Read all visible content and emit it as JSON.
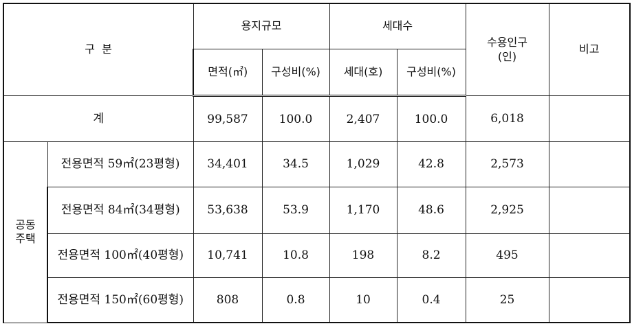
{
  "header": {
    "category": "구  분",
    "land_scale": "용지규모",
    "households": "세대수",
    "population": "수용인구\n(인)",
    "remarks": "비고",
    "area": "면적(㎡)",
    "area_ratio": "구성비(%)",
    "hh_count": "세대(호)",
    "hh_ratio": "구성비(%)"
  },
  "total": {
    "label": "계",
    "area": "99,587",
    "area_ratio": "100.0",
    "hh": "2,407",
    "hh_ratio": "100.0",
    "pop": "6,018",
    "remark": ""
  },
  "group_label": "공동\n주택",
  "rows": [
    {
      "label": "전용면적  59㎡(23평형)",
      "area": "34,401",
      "area_ratio": "34.5",
      "hh": "1,029",
      "hh_ratio": "42.8",
      "pop": "2,573",
      "remark": ""
    },
    {
      "label": "전용면적  84㎡(34평형)",
      "area": "53,638",
      "area_ratio": "53.9",
      "hh": "1,170",
      "hh_ratio": "48.6",
      "pop": "2,925",
      "remark": ""
    },
    {
      "label": "전용면적  100㎡(40평형)",
      "area": "10,741",
      "area_ratio": "10.8",
      "hh": "198",
      "hh_ratio": "8.2",
      "pop": "495",
      "remark": ""
    },
    {
      "label": "전용면적  150㎡(60평형)",
      "area": "808",
      "area_ratio": "0.8",
      "hh": "10",
      "hh_ratio": "0.4",
      "pop": "25",
      "remark": ""
    }
  ]
}
